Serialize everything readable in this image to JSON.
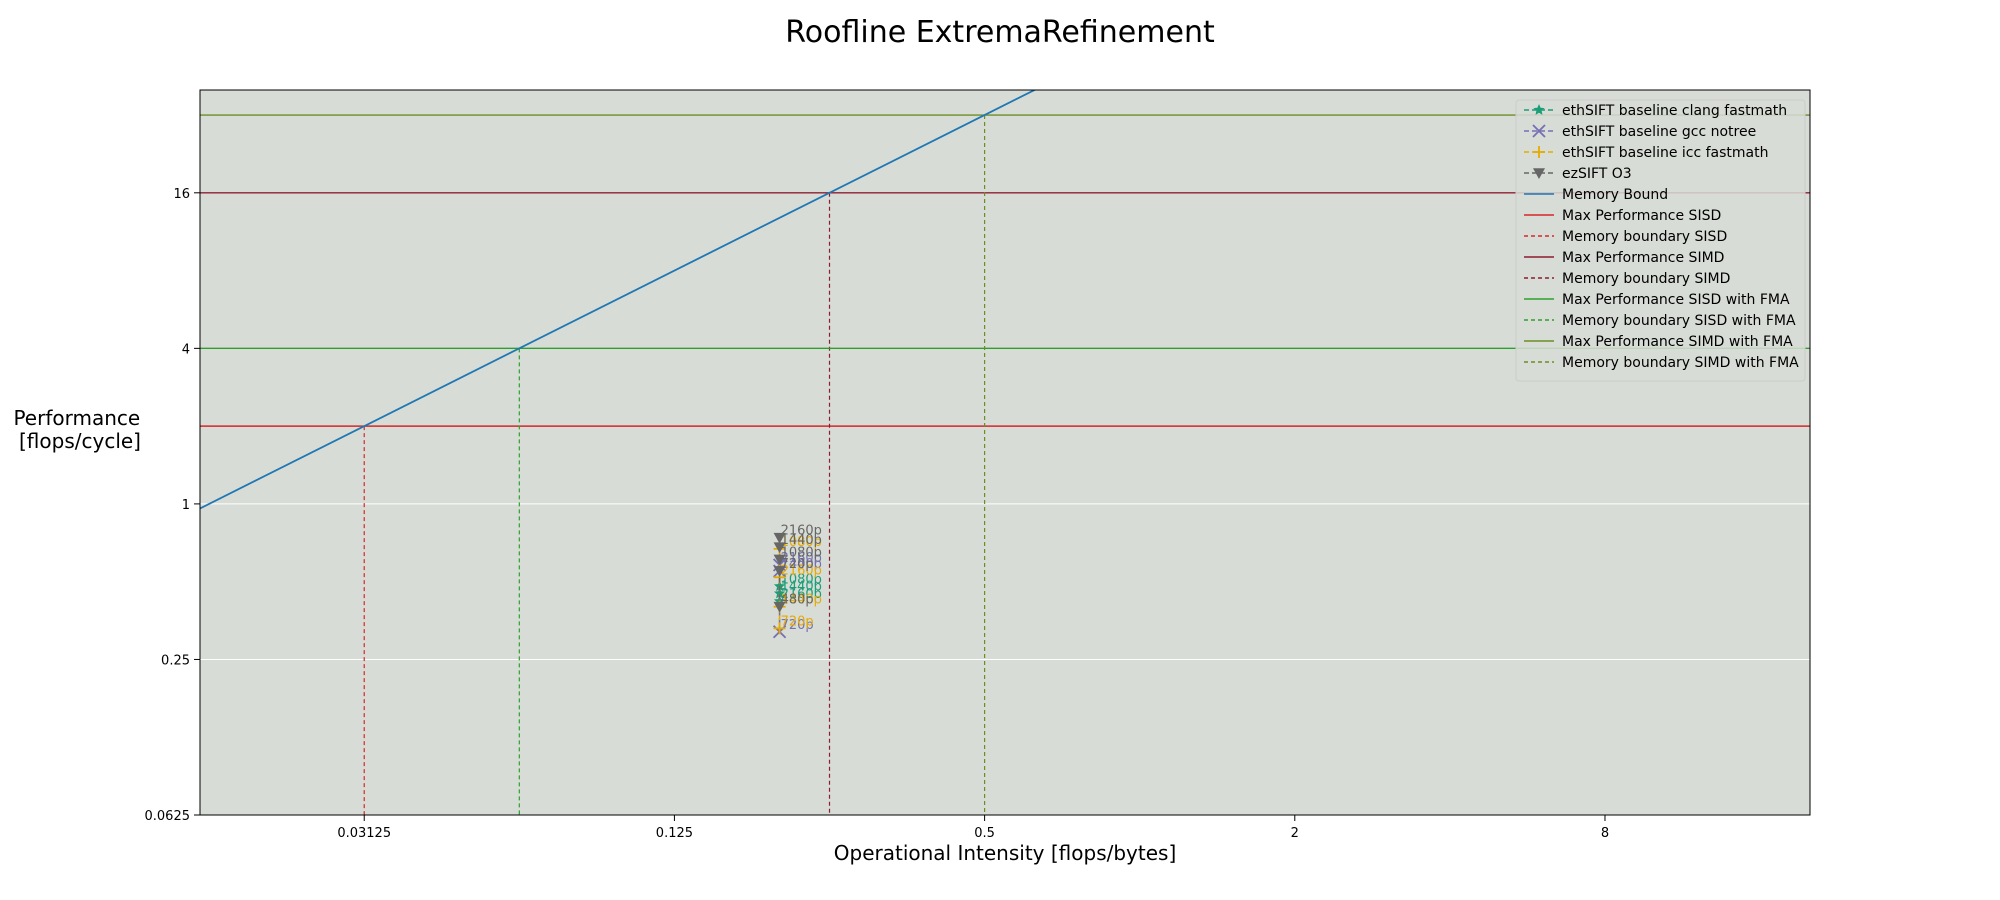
{
  "chart_data": {
    "type": "line",
    "title": "Roofline ExtremaRefinement",
    "xlabel": "Operational Intensity [flops/bytes]",
    "ylabel": [
      "Performance",
      "[flops/cycle]"
    ],
    "xscale": "log2",
    "yscale": "log2",
    "xlim": [
      0.015,
      20
    ],
    "ylim": [
      0.0625,
      40
    ],
    "xticks": [
      {
        "v": 0.03125,
        "label": "0.03125"
      },
      {
        "v": 0.125,
        "label": "0.125"
      },
      {
        "v": 0.5,
        "label": "0.5"
      },
      {
        "v": 2,
        "label": "2"
      },
      {
        "v": 8,
        "label": "8"
      }
    ],
    "yticks": [
      {
        "v": 0.0625,
        "label": "0.0625"
      },
      {
        "v": 0.25,
        "label": "0.25"
      },
      {
        "v": 1,
        "label": "1"
      },
      {
        "v": 4,
        "label": "4"
      },
      {
        "v": 16,
        "label": "16"
      }
    ],
    "grid": "horizontal",
    "background": "#d8dcd6",
    "legend_position": "top-right",
    "memory_bound": {
      "name": "Memory Bound",
      "slope": 64,
      "color": "#1f77b4"
    },
    "ceilings": [
      {
        "name": "Max Performance SISD",
        "value": 2,
        "color": "#d62728",
        "boundary_name": "Memory boundary SISD",
        "boundary_x": 0.03125
      },
      {
        "name": "Max Performance SIMD",
        "value": 16,
        "color": "#8c1d2e",
        "boundary_name": "Memory boundary SIMD",
        "boundary_x": 0.25
      },
      {
        "name": "Max Performance SISD with FMA",
        "value": 4,
        "color": "#2ca02c",
        "boundary_name": "Memory boundary SISD with FMA",
        "boundary_x": 0.0625
      },
      {
        "name": "Max Performance SIMD with FMA",
        "value": 32,
        "color": "#6b8e23",
        "boundary_name": "Memory boundary SIMD with FMA",
        "boundary_x": 0.5
      }
    ],
    "series": [
      {
        "name": "ethSIFT baseline clang fastmath",
        "marker": "star",
        "color": "#1b9e77",
        "points": [
          {
            "x": 0.2,
            "y": 0.42,
            "label": "2160p"
          },
          {
            "x": 0.2,
            "y": 0.45,
            "label": "1440p"
          },
          {
            "x": 0.2,
            "y": 0.48,
            "label": "1080p"
          }
        ]
      },
      {
        "name": "ethSIFT baseline gcc notree",
        "marker": "x",
        "color": "#7570b3",
        "points": [
          {
            "x": 0.2,
            "y": 0.32,
            "label": "720p"
          },
          {
            "x": 0.2,
            "y": 0.55,
            "label": "1440p"
          },
          {
            "x": 0.2,
            "y": 0.58,
            "label": "2160p"
          }
        ]
      },
      {
        "name": "ethSIFT baseline icc fastmath",
        "marker": "plus",
        "color": "#e6ab02",
        "points": [
          {
            "x": 0.2,
            "y": 0.33,
            "label": "720p"
          },
          {
            "x": 0.2,
            "y": 0.4,
            "label": "1440p"
          },
          {
            "x": 0.2,
            "y": 0.52,
            "label": "2160p"
          },
          {
            "x": 0.2,
            "y": 0.67,
            "label": "1080p"
          }
        ]
      },
      {
        "name": "ezSIFT O3",
        "marker": "triangle-down",
        "color": "#666666",
        "points": [
          {
            "x": 0.2,
            "y": 0.4,
            "label": "480p"
          },
          {
            "x": 0.2,
            "y": 0.55,
            "label": "720p"
          },
          {
            "x": 0.2,
            "y": 0.61,
            "label": "1080p"
          },
          {
            "x": 0.2,
            "y": 0.68,
            "label": "1440p"
          },
          {
            "x": 0.2,
            "y": 0.74,
            "label": "2160p"
          }
        ]
      }
    ]
  }
}
